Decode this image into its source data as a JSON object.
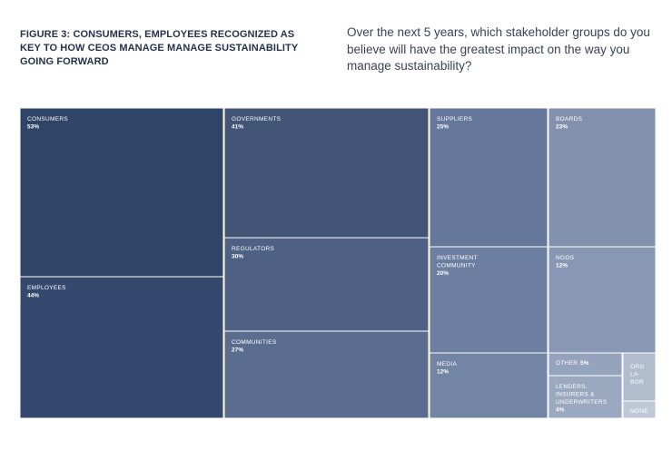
{
  "figure": {
    "title": "FIGURE 3: CONSUMERS, EMPLOYEES RECOGNIZED AS KEY TO HOW CEOS MANAGE MANAGE SUSTAINABILITY GOING FORWARD",
    "question": "Over the next 5 years, which stakeholder groups do you believe will have the greatest impact on the way you manage sustainability?"
  },
  "colors": {
    "consumers": "#2f4467",
    "employees": "#34496d",
    "governments": "#425577",
    "regulators": "#4e6184",
    "communities": "#5a6d8f",
    "suppliers": "#65779a",
    "investment": "#6c7fa1",
    "media": "#7385a5",
    "boards": "#8191ae",
    "ngos": "#8898b4",
    "other": "#95a3bc",
    "lenders": "#9aa8c0",
    "org_labor": "#b1bccd",
    "none": "#bec8d6"
  },
  "chart_data": {
    "type": "treemap",
    "cells": [
      {
        "id": "consumers",
        "label": "CONSUMERS",
        "value": 53,
        "value_label": "53%"
      },
      {
        "id": "employees",
        "label": "EMPLOYEES",
        "value": 44,
        "value_label": "44%"
      },
      {
        "id": "governments",
        "label": "GOVERNMENTS",
        "value": 41,
        "value_label": "41%"
      },
      {
        "id": "regulators",
        "label": "REGULATORS",
        "value": 30,
        "value_label": "30%"
      },
      {
        "id": "communities",
        "label": "COMMUNITIES",
        "value": 27,
        "value_label": "27%"
      },
      {
        "id": "suppliers",
        "label": "SUPPLIERS",
        "value": 25,
        "value_label": "25%"
      },
      {
        "id": "investment",
        "label": "INVESTMENT COMMUNITY",
        "value": 20,
        "value_label": "20%"
      },
      {
        "id": "media",
        "label": "MEDIA",
        "value": 12,
        "value_label": "12%"
      },
      {
        "id": "boards",
        "label": "BOARDS",
        "value": 23,
        "value_label": "23%"
      },
      {
        "id": "ngos",
        "label": "NGOS",
        "value": 12,
        "value_label": "12%"
      },
      {
        "id": "other",
        "label": "OTHER",
        "value": 5,
        "value_label": "5%"
      },
      {
        "id": "lenders",
        "label": "LENDERS, INSURERS & UNDERWRITERS",
        "value": 4,
        "value_label": "4%"
      },
      {
        "id": "org_labor",
        "label": "ORG LA- BOR",
        "value": null,
        "value_label": ""
      },
      {
        "id": "none",
        "label": "NONE",
        "value": null,
        "value_label": ""
      }
    ]
  }
}
